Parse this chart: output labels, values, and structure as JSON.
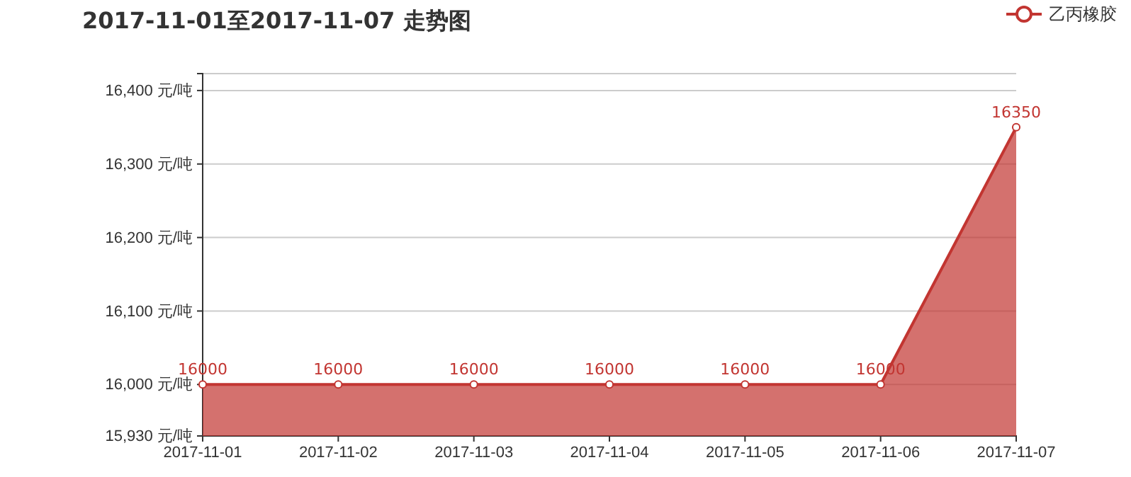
{
  "chart_data": {
    "type": "area",
    "title": "2017-11-01至2017-11-07 走势图",
    "categories": [
      "2017-11-01",
      "2017-11-02",
      "2017-11-03",
      "2017-11-04",
      "2017-11-05",
      "2017-11-06",
      "2017-11-07"
    ],
    "series": [
      {
        "name": "乙丙橡胶",
        "color": "#c23531",
        "values": [
          16000,
          16000,
          16000,
          16000,
          16000,
          16000,
          16350
        ]
      }
    ],
    "ylim": [
      15930,
      16423
    ],
    "yticks": [
      {
        "value": 15930,
        "label": "15,930 元/吨"
      },
      {
        "value": 16000,
        "label": "16,000 元/吨"
      },
      {
        "value": 16100,
        "label": "16,100 元/吨"
      },
      {
        "value": 16200,
        "label": "16,200 元/吨"
      },
      {
        "value": 16300,
        "label": "16,300 元/吨"
      },
      {
        "value": 16400,
        "label": "16,400 元/吨"
      }
    ],
    "grid": "y",
    "legend": "top right",
    "marker": "circle",
    "data_labels": true
  }
}
